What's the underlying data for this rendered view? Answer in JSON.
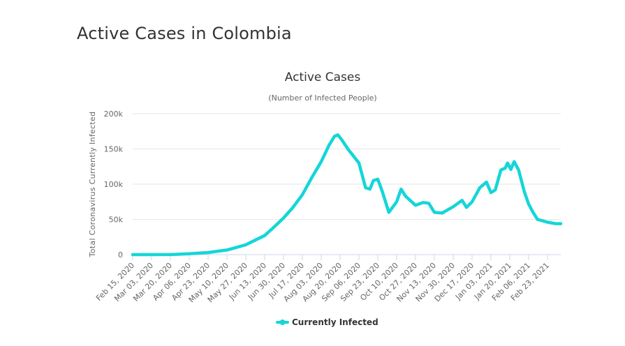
{
  "page": {
    "title": "Active Cases in Colombia"
  },
  "chart_data": {
    "type": "line",
    "title": "Active Cases",
    "subtitle": "(Number of Infected People)",
    "ylabel": "Total Coronavirus Currently Infected",
    "xlabel": "",
    "ylim": [
      0,
      200000
    ],
    "yticks": [
      0,
      50000,
      100000,
      150000,
      200000
    ],
    "ytick_labels": [
      "0",
      "50k",
      "100k",
      "150k",
      "200k"
    ],
    "x_start": "Feb 15, 2020",
    "x_end": "Mar 07, 2021",
    "xtick_labels": [
      "Feb 15, 2020",
      "Mar 03, 2020",
      "Mar 20, 2020",
      "Apr 06, 2020",
      "Apr 23, 2020",
      "May 10, 2020",
      "May 27, 2020",
      "Jun 13, 2020",
      "Jun 30, 2020",
      "Jul 17, 2020",
      "Aug 03, 2020",
      "Aug 20, 2020",
      "Sep 06, 2020",
      "Sep 23, 2020",
      "Oct 10, 2020",
      "Oct 27, 2020",
      "Nov 13, 2020",
      "Nov 30, 2020",
      "Dec 17, 2020",
      "Jan 03, 2021",
      "Jan 20, 2021",
      "Feb 06, 2021",
      "Feb 23, 2021"
    ],
    "grid": true,
    "legend": "bottom-center",
    "series": [
      {
        "name": "Currently Infected",
        "color": "#14d6d8",
        "points": [
          [
            "Feb 15, 2020",
            0
          ],
          [
            "Mar 03, 2020",
            0
          ],
          [
            "Mar 20, 2020",
            100
          ],
          [
            "Apr 06, 2020",
            1200
          ],
          [
            "Apr 23, 2020",
            3000
          ],
          [
            "May 10, 2020",
            6500
          ],
          [
            "May 27, 2020",
            14000
          ],
          [
            "Jun 05, 2020",
            21000
          ],
          [
            "Jun 13, 2020",
            27000
          ],
          [
            "Jun 22, 2020",
            40000
          ],
          [
            "Jun 30, 2020",
            52000
          ],
          [
            "Jul 08, 2020",
            66000
          ],
          [
            "Jul 17, 2020",
            85000
          ],
          [
            "Jul 25, 2020",
            108000
          ],
          [
            "Aug 03, 2020",
            132000
          ],
          [
            "Aug 10, 2020",
            155000
          ],
          [
            "Aug 15, 2020",
            168000
          ],
          [
            "Aug 18, 2020",
            170000
          ],
          [
            "Aug 22, 2020",
            162000
          ],
          [
            "Aug 27, 2020",
            150000
          ],
          [
            "Sep 06, 2020",
            130000
          ],
          [
            "Sep 12, 2020",
            95000
          ],
          [
            "Sep 16, 2020",
            93000
          ],
          [
            "Sep 19, 2020",
            105000
          ],
          [
            "Sep 23, 2020",
            107000
          ],
          [
            "Sep 27, 2020",
            90000
          ],
          [
            "Oct 03, 2020",
            60000
          ],
          [
            "Oct 10, 2020",
            75000
          ],
          [
            "Oct 14, 2020",
            93000
          ],
          [
            "Oct 18, 2020",
            83000
          ],
          [
            "Oct 27, 2020",
            70000
          ],
          [
            "Nov 03, 2020",
            74000
          ],
          [
            "Nov 08, 2020",
            73000
          ],
          [
            "Nov 13, 2020",
            60000
          ],
          [
            "Nov 20, 2020",
            59000
          ],
          [
            "Nov 30, 2020",
            68000
          ],
          [
            "Dec 08, 2020",
            77000
          ],
          [
            "Dec 12, 2020",
            67000
          ],
          [
            "Dec 17, 2020",
            75000
          ],
          [
            "Dec 24, 2020",
            95000
          ],
          [
            "Dec 30, 2020",
            103000
          ],
          [
            "Jan 03, 2021",
            88000
          ],
          [
            "Jan 07, 2021",
            92000
          ],
          [
            "Jan 12, 2021",
            120000
          ],
          [
            "Jan 16, 2021",
            123000
          ],
          [
            "Jan 18, 2021",
            130000
          ],
          [
            "Jan 21, 2021",
            121000
          ],
          [
            "Jan 24, 2021",
            132000
          ],
          [
            "Jan 28, 2021",
            120000
          ],
          [
            "Feb 02, 2021",
            90000
          ],
          [
            "Feb 06, 2021",
            72000
          ],
          [
            "Feb 10, 2021",
            60000
          ],
          [
            "Feb 14, 2021",
            50000
          ],
          [
            "Feb 23, 2021",
            46000
          ],
          [
            "Mar 02, 2021",
            44000
          ],
          [
            "Mar 07, 2021",
            44000
          ]
        ]
      }
    ]
  }
}
